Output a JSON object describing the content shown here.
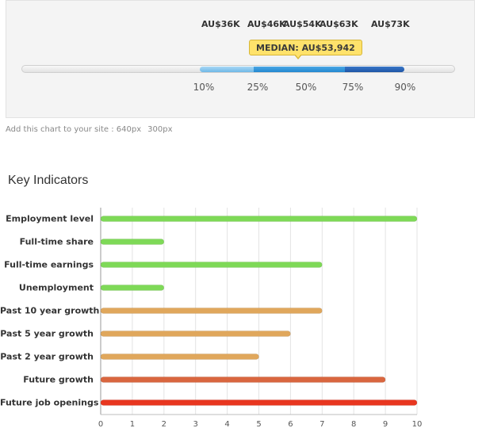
{
  "salary_range": {
    "salary_labels": [
      "AU$36K",
      "AU$46K",
      "AU$54K",
      "AU$63K",
      "AU$73K"
    ],
    "median_label": "MEDIAN: AU$53,942",
    "percentile_labels": [
      "10%",
      "25%",
      "50%",
      "75%",
      "90%"
    ],
    "colors": {
      "low": "#7cc0ea",
      "mid": "#2f92d8",
      "high": "#1f5fb0",
      "badge": "#ffe26b"
    }
  },
  "embed": {
    "text": "Add this chart to your site : 640px",
    "size_option": "300px"
  },
  "key_indicators": {
    "title": "Key Indicators"
  },
  "chart_data": {
    "type": "bar",
    "orientation": "horizontal",
    "categories": [
      "Employment level",
      "Full-time share",
      "Full-time earnings",
      "Unemployment",
      "Past 10 year growth",
      "Past 5 year growth",
      "Past 2 year growth",
      "Future growth",
      "Future job openings"
    ],
    "values": [
      10,
      2,
      7,
      2,
      7,
      6,
      5,
      9,
      10
    ],
    "colors": [
      "#7ed957",
      "#7ed957",
      "#7ed957",
      "#7ed957",
      "#e0a75c",
      "#e0a75c",
      "#e0a75c",
      "#d9663f",
      "#e8361f"
    ],
    "xlim": [
      0,
      10
    ],
    "xticks": [
      "0",
      "1",
      "2",
      "3",
      "4",
      "5",
      "6",
      "7",
      "8",
      "9",
      "10"
    ],
    "grid": true,
    "xlabel": "",
    "ylabel": ""
  }
}
